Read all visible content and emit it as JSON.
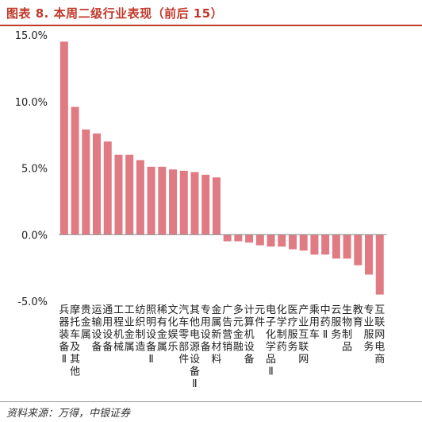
{
  "header": {
    "title": "图表 8. 本周二级行业表现（前后 15）"
  },
  "footer": {
    "source": "资料来源：万得，中银证券"
  },
  "colors": {
    "bar": "#e07b84",
    "title": "#c0392b",
    "axis": "#888888"
  },
  "chart_data": {
    "type": "bar",
    "title": "",
    "xlabel": "",
    "ylabel": "",
    "unit": "%",
    "ylim": [
      -5,
      15
    ],
    "yticks": [
      15,
      10,
      5,
      0,
      -5
    ],
    "ytick_labels": [
      "15.0%",
      "10.0%",
      "5.0%",
      "0.0%",
      "-5.0%"
    ],
    "grid": false,
    "legend": "none",
    "categories": [
      "兵器装备Ⅱ",
      "摩托车及其他",
      "贵金属",
      "运输设备",
      "通用设备",
      "工程机械",
      "工业金属",
      "纺织制造",
      "照明设备Ⅱ",
      "稀有金属",
      "文化娱乐",
      "汽车零部件",
      "其他电源设备Ⅱ",
      "专用设备",
      "金属新材料",
      "广告营销",
      "多元金融",
      "计算机设备",
      "元件",
      "电子化学品Ⅱ",
      "化学制药",
      "医疗服务",
      "产业互联网",
      "乘用车",
      "中药Ⅱ",
      "云服务",
      "生物制品",
      "教育",
      "专业服务",
      "互联网电商"
    ],
    "values": [
      14.5,
      9.6,
      7.9,
      7.6,
      7.0,
      6.0,
      6.0,
      5.6,
      5.1,
      5.1,
      4.9,
      4.8,
      4.7,
      4.5,
      4.3,
      -0.5,
      -0.5,
      -0.6,
      -0.8,
      -0.9,
      -0.9,
      -1.1,
      -1.2,
      -1.5,
      -1.5,
      -1.8,
      -1.8,
      -2.3,
      -3.0,
      -4.5
    ]
  }
}
